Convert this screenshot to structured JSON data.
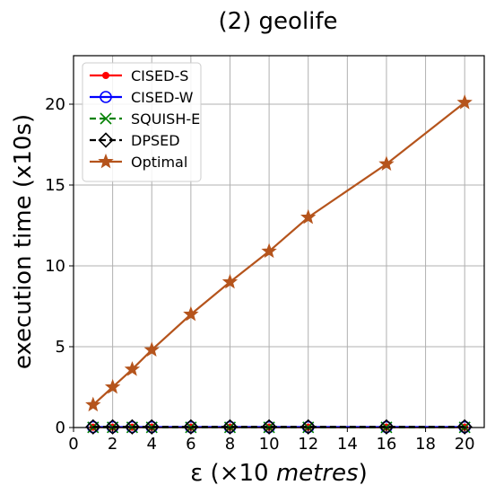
{
  "chart_data": {
    "type": "line",
    "title": "(2) geolife",
    "xlabel_prefix": "ε (×10 ",
    "xlabel_unit": "metres",
    "xlabel_suffix": ")",
    "ylabel": "execution time (x10s)",
    "x": [
      1,
      2,
      3,
      4,
      6,
      8,
      10,
      12,
      16,
      20
    ],
    "xlim": [
      0,
      21
    ],
    "ylim": [
      0,
      23
    ],
    "xticks": [
      0,
      2,
      4,
      6,
      8,
      10,
      12,
      14,
      16,
      18,
      20
    ],
    "yticks": [
      0,
      5,
      10,
      15,
      20
    ],
    "grid": true,
    "legend_position": "top-left",
    "series": [
      {
        "name": "CISED-S",
        "color": "#ff0000",
        "marker": "dot",
        "dash": "solid",
        "values": [
          0.02,
          0.02,
          0.02,
          0.02,
          0.02,
          0.02,
          0.02,
          0.02,
          0.02,
          0.02
        ]
      },
      {
        "name": "CISED-W",
        "color": "#0000ff",
        "marker": "circle",
        "dash": "solid",
        "values": [
          0.03,
          0.03,
          0.03,
          0.03,
          0.03,
          0.03,
          0.03,
          0.03,
          0.03,
          0.03
        ]
      },
      {
        "name": "SQUISH-E",
        "color": "#008000",
        "marker": "x",
        "dash": "dashed",
        "values": [
          0.01,
          0.01,
          0.01,
          0.01,
          0.01,
          0.01,
          0.01,
          0.01,
          0.01,
          0.01
        ]
      },
      {
        "name": "DPSED",
        "color": "#000000",
        "marker": "diamond",
        "dash": "dashed",
        "values": [
          0.04,
          0.04,
          0.04,
          0.04,
          0.04,
          0.04,
          0.04,
          0.04,
          0.04,
          0.04
        ]
      },
      {
        "name": "Optimal",
        "color": "#b5541c",
        "marker": "star",
        "dash": "solid",
        "values": [
          1.4,
          2.5,
          3.6,
          4.8,
          7.0,
          9.0,
          10.9,
          13.0,
          16.3,
          20.1
        ]
      }
    ]
  }
}
